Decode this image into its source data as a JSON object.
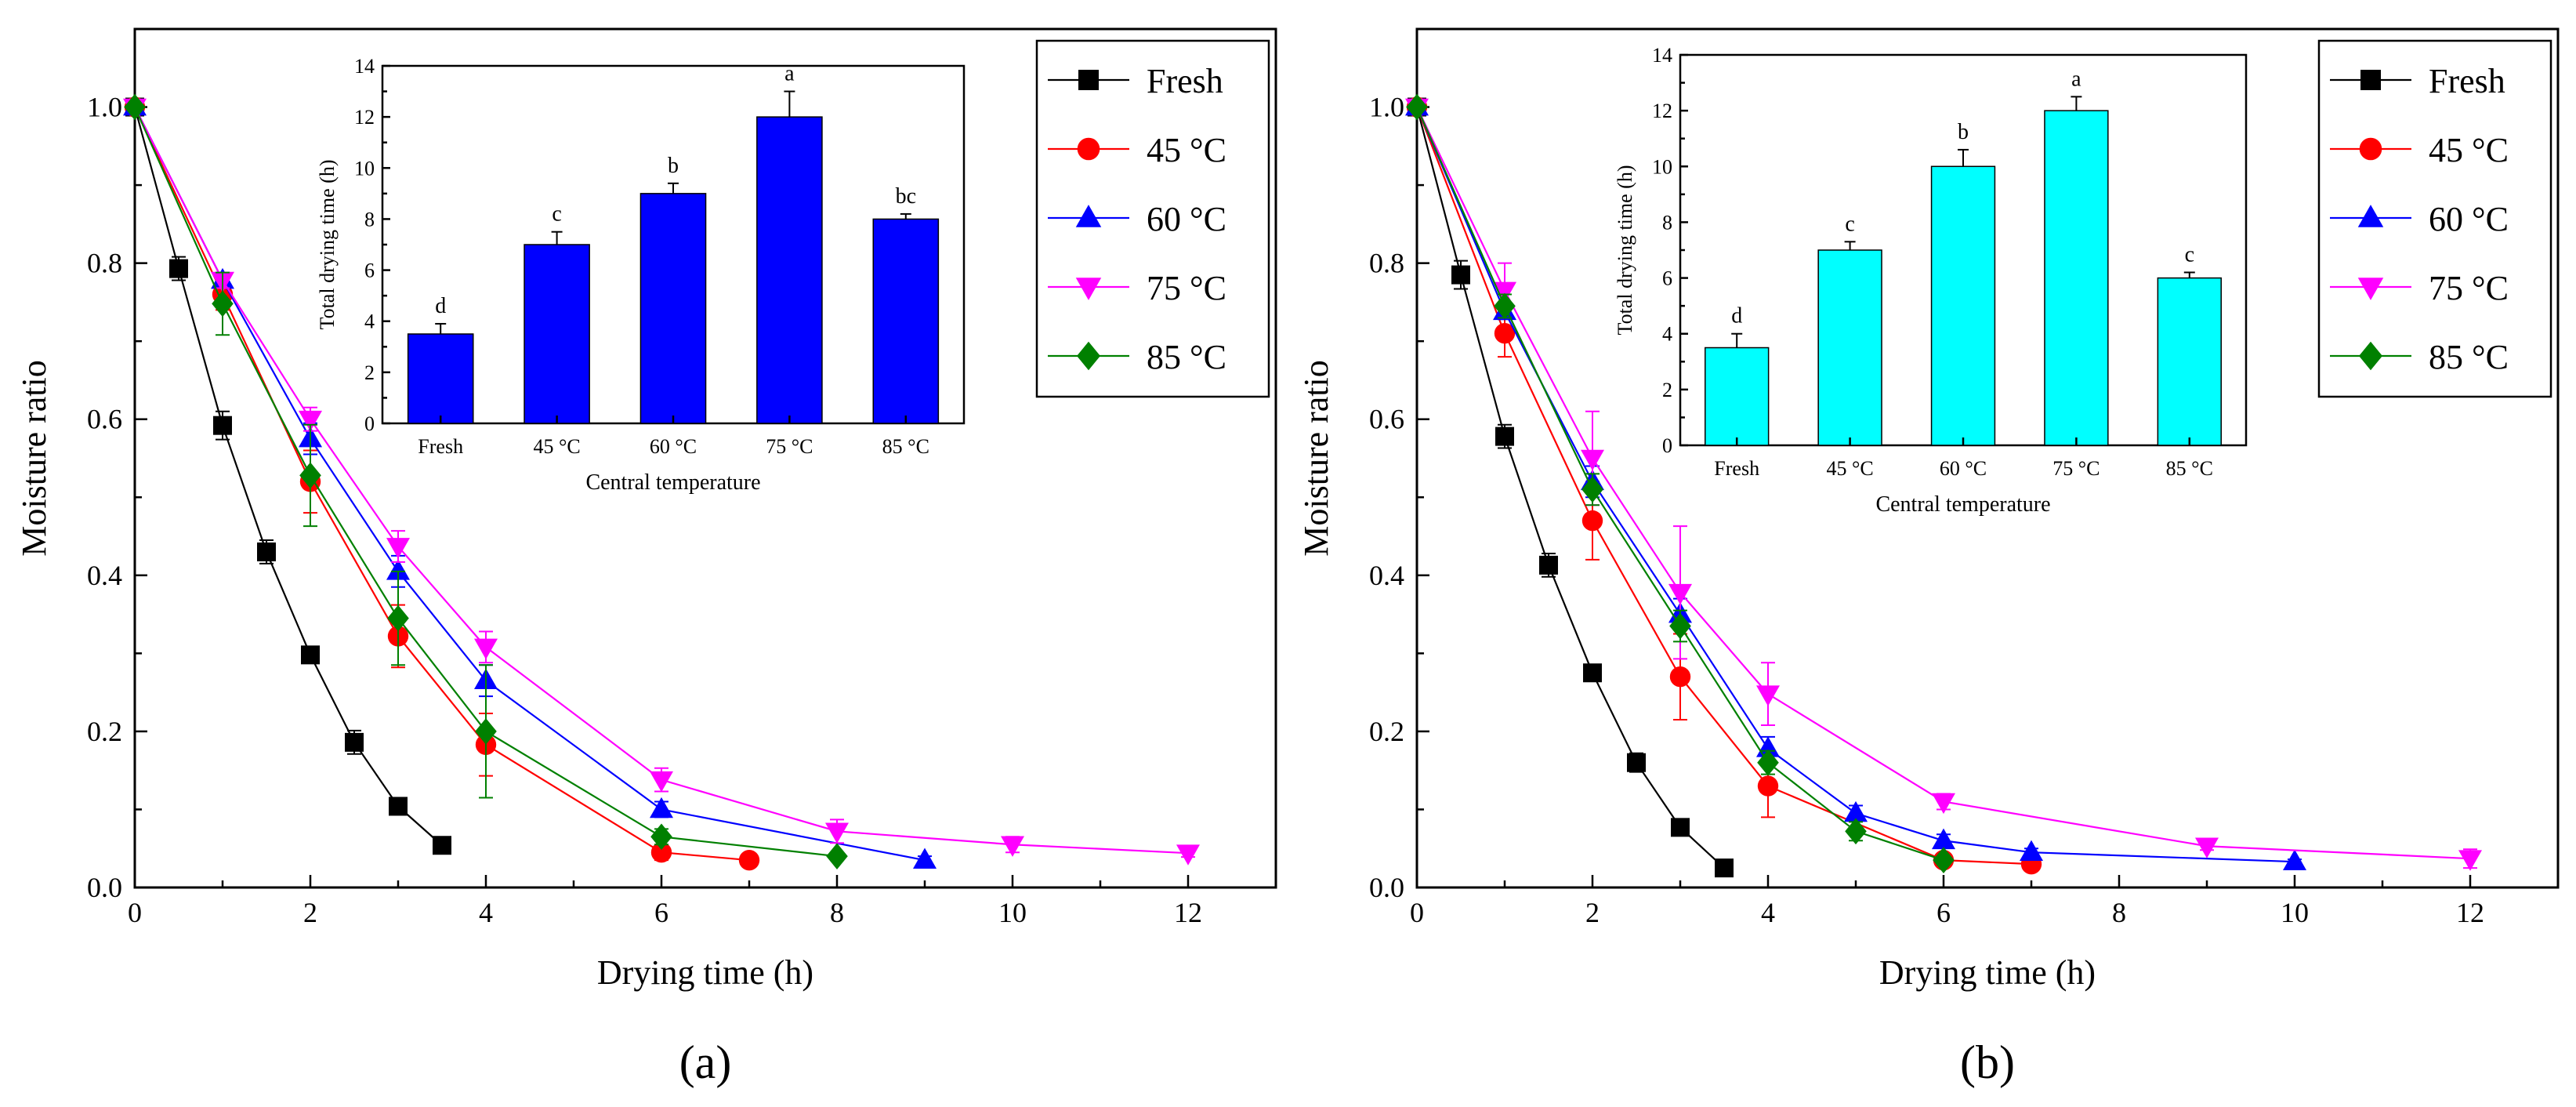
{
  "chart_data": [
    {
      "type": "line",
      "panel_label": "(a)",
      "xlabel": "Drying time (h)",
      "ylabel": "Moisture ratio",
      "xlim": [
        0,
        13
      ],
      "ylim": [
        0,
        1.1
      ],
      "xticks": [
        0,
        2,
        4,
        6,
        8,
        10,
        12
      ],
      "yticks": [
        0.0,
        0.2,
        0.4,
        0.6,
        0.8,
        1.0
      ],
      "xtick_labels": [
        "0",
        "2",
        "4",
        "6",
        "8",
        "10",
        "12"
      ],
      "ytick_labels": [
        "0.0",
        "0.2",
        "0.4",
        "0.6",
        "0.8",
        "1.0"
      ],
      "legend": "top-right",
      "series": [
        {
          "name": "Fresh",
          "color": "#000000",
          "marker": "square",
          "x": [
            0,
            0.5,
            1,
            1.5,
            2,
            2.5,
            3,
            3.5
          ],
          "y": [
            1.0,
            0.793,
            0.592,
            0.43,
            0.298,
            0.186,
            0.104,
            0.054
          ],
          "err": [
            0,
            0.015,
            0.018,
            0.015,
            0.008,
            0.015,
            0.008,
            0.005
          ]
        },
        {
          "name": "45 °C",
          "color": "#ff0000",
          "marker": "circle",
          "x": [
            0,
            1,
            2,
            3,
            4,
            6,
            7
          ],
          "y": [
            1.0,
            0.76,
            0.52,
            0.322,
            0.183,
            0.045,
            0.035
          ],
          "err": [
            0,
            0.02,
            0.04,
            0.04,
            0.04,
            0.01,
            0.005
          ]
        },
        {
          "name": "60 °C",
          "color": "#0000ff",
          "marker": "triangle-up",
          "x": [
            0,
            1,
            2,
            3,
            4,
            6,
            9
          ],
          "y": [
            1.0,
            0.778,
            0.575,
            0.405,
            0.265,
            0.1,
            0.035
          ],
          "err": [
            0,
            0.01,
            0.02,
            0.02,
            0.02,
            0.01,
            0.005
          ]
        },
        {
          "name": "75 °C",
          "color": "#ff00ff",
          "marker": "triangle-down",
          "x": [
            0,
            1,
            2,
            3,
            4,
            6,
            8,
            10,
            12
          ],
          "y": [
            1.0,
            0.778,
            0.6,
            0.437,
            0.308,
            0.138,
            0.072,
            0.055,
            0.044
          ],
          "err": [
            0,
            0.01,
            0.015,
            0.02,
            0.02,
            0.015,
            0.015,
            0.01,
            0.005
          ]
        },
        {
          "name": "85 °C",
          "color": "#008000",
          "marker": "diamond",
          "x": [
            0,
            1,
            2,
            3,
            4,
            6,
            8
          ],
          "y": [
            1.0,
            0.748,
            0.528,
            0.345,
            0.2,
            0.065,
            0.04
          ],
          "err": [
            0,
            0.04,
            0.065,
            0.06,
            0.085,
            0.01,
            0.005
          ]
        }
      ],
      "inset": {
        "type": "bar",
        "color": "#0000ff",
        "xlabel": "Central temperature",
        "ylabel": "Total drying time (h)",
        "ylim": [
          0,
          14
        ],
        "yticks": [
          0,
          2,
          4,
          6,
          8,
          10,
          12,
          14
        ],
        "ytick_labels": [
          "0",
          "2",
          "4",
          "6",
          "8",
          "10",
          "12",
          "14"
        ],
        "categories": [
          "Fresh",
          "45 °C",
          "60 °C",
          "75 °C",
          "85 °C"
        ],
        "values": [
          3.5,
          7.0,
          9.0,
          12.0,
          8.0
        ],
        "err": [
          0.4,
          0.5,
          0.4,
          1.0,
          0.2
        ],
        "letters": [
          "d",
          "c",
          "b",
          "a",
          "bc"
        ]
      }
    },
    {
      "type": "line",
      "panel_label": "(b)",
      "xlabel": "Drying time (h)",
      "ylabel": "Moisture ratio",
      "xlim": [
        0,
        13
      ],
      "ylim": [
        0,
        1.1
      ],
      "xticks": [
        0,
        2,
        4,
        6,
        8,
        10,
        12
      ],
      "yticks": [
        0.0,
        0.2,
        0.4,
        0.6,
        0.8,
        1.0
      ],
      "xtick_labels": [
        "0",
        "2",
        "4",
        "6",
        "8",
        "10",
        "12"
      ],
      "ytick_labels": [
        "0.0",
        "0.2",
        "0.4",
        "0.6",
        "0.8",
        "1.0"
      ],
      "legend": "top-right",
      "series": [
        {
          "name": "Fresh",
          "color": "#000000",
          "marker": "square",
          "x": [
            0,
            0.5,
            1,
            1.5,
            2,
            2.5,
            3,
            3.5
          ],
          "y": [
            1.0,
            0.785,
            0.578,
            0.413,
            0.275,
            0.16,
            0.077,
            0.025
          ],
          "err": [
            0,
            0.018,
            0.015,
            0.015,
            0.008,
            0.012,
            0.005,
            0.003
          ]
        },
        {
          "name": "45 °C",
          "color": "#ff0000",
          "marker": "circle",
          "x": [
            0,
            1,
            2,
            3,
            4,
            6,
            7
          ],
          "y": [
            1.0,
            0.71,
            0.47,
            0.27,
            0.13,
            0.035,
            0.03
          ],
          "err": [
            0,
            0.03,
            0.05,
            0.055,
            0.04,
            0.005,
            0.005
          ]
        },
        {
          "name": "60 °C",
          "color": "#0000ff",
          "marker": "triangle-up",
          "x": [
            0,
            1,
            2,
            3,
            4,
            5,
            6,
            7,
            10
          ],
          "y": [
            1.0,
            0.738,
            0.52,
            0.35,
            0.178,
            0.095,
            0.06,
            0.045,
            0.033
          ],
          "err": [
            0,
            0.01,
            0.02,
            0.02,
            0.015,
            0.01,
            0.008,
            0.005,
            0.003
          ]
        },
        {
          "name": "75 °C",
          "color": "#ff00ff",
          "marker": "triangle-down",
          "x": [
            0,
            1,
            2,
            3,
            4,
            6,
            9,
            12
          ],
          "y": [
            1.0,
            0.765,
            0.55,
            0.378,
            0.248,
            0.11,
            0.053,
            0.037
          ],
          "err": [
            0,
            0.035,
            0.06,
            0.085,
            0.04,
            0.01,
            0.005,
            0.012
          ]
        },
        {
          "name": "85 °C",
          "color": "#008000",
          "marker": "diamond",
          "x": [
            0,
            1,
            2,
            3,
            4,
            5,
            6
          ],
          "y": [
            1.0,
            0.745,
            0.51,
            0.335,
            0.16,
            0.072,
            0.035
          ],
          "err": [
            0,
            0.015,
            0.02,
            0.02,
            0.015,
            0.012,
            0.005
          ]
        }
      ],
      "inset": {
        "type": "bar",
        "color": "#00ffff",
        "xlabel": "Central temperature",
        "ylabel": "Total drying time (h)",
        "ylim": [
          0,
          14
        ],
        "yticks": [
          0,
          2,
          4,
          6,
          8,
          10,
          12,
          14
        ],
        "ytick_labels": [
          "0",
          "2",
          "4",
          "6",
          "8",
          "10",
          "12",
          "14"
        ],
        "categories": [
          "Fresh",
          "45 °C",
          "60 °C",
          "75 °C",
          "85 °C"
        ],
        "values": [
          3.5,
          7.0,
          10.0,
          12.0,
          6.0
        ],
        "err": [
          0.5,
          0.3,
          0.6,
          0.5,
          0.2
        ],
        "letters": [
          "d",
          "c",
          "b",
          "a",
          "c"
        ]
      }
    }
  ]
}
